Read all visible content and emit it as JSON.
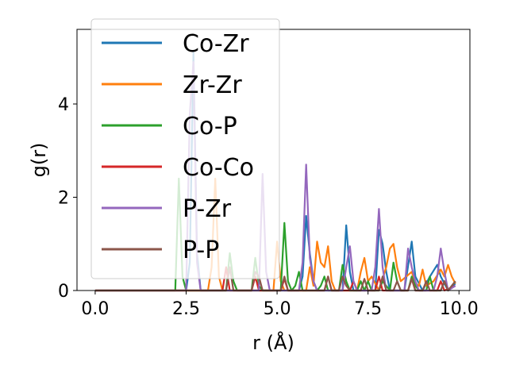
{
  "chart_data": {
    "type": "line",
    "title": "",
    "xlabel": "r (Å)",
    "ylabel": "g(r)",
    "xlim": [
      -0.5,
      10.3
    ],
    "ylim": [
      0,
      5.6
    ],
    "xticks": [
      "0.0",
      "2.5",
      "5.0",
      "7.5",
      "10.0"
    ],
    "yticks": [
      "0",
      "2",
      "4"
    ],
    "grid": false,
    "legend_position": "upper-left",
    "series": [
      {
        "name": "Co-Zr",
        "color": "#1f77b4",
        "points": [
          [
            0,
            0
          ],
          [
            2.5,
            0
          ],
          [
            2.6,
            0.6
          ],
          [
            2.7,
            5.1
          ],
          [
            2.8,
            0.8
          ],
          [
            2.9,
            0
          ],
          [
            5.6,
            0
          ],
          [
            5.7,
            0.3
          ],
          [
            5.8,
            1.6
          ],
          [
            5.9,
            0.8
          ],
          [
            6.0,
            0.2
          ],
          [
            6.1,
            0
          ],
          [
            6.8,
            0
          ],
          [
            6.9,
            1.4
          ],
          [
            7.0,
            0.4
          ],
          [
            7.1,
            0
          ],
          [
            7.7,
            0
          ],
          [
            7.8,
            1.3
          ],
          [
            7.9,
            1.0
          ],
          [
            8.0,
            0.4
          ],
          [
            8.1,
            0
          ],
          [
            8.5,
            0
          ],
          [
            8.7,
            1.05
          ],
          [
            8.8,
            0.3
          ],
          [
            9.0,
            0
          ],
          [
            9.2,
            0.3
          ],
          [
            9.4,
            0.55
          ],
          [
            9.5,
            0.3
          ],
          [
            9.7,
            0
          ],
          [
            9.9,
            0.15
          ]
        ]
      },
      {
        "name": "Zr-Zr",
        "color": "#ff7f0e",
        "points": [
          [
            0,
            0
          ],
          [
            3.1,
            0
          ],
          [
            3.2,
            0.5
          ],
          [
            3.3,
            2.4
          ],
          [
            3.4,
            0.3
          ],
          [
            3.5,
            0
          ],
          [
            4.9,
            0
          ],
          [
            5.0,
            1.05
          ],
          [
            5.1,
            0.2
          ],
          [
            5.2,
            0
          ],
          [
            5.8,
            0
          ],
          [
            5.9,
            0.5
          ],
          [
            6.0,
            0.1
          ],
          [
            6.1,
            1.05
          ],
          [
            6.2,
            0.6
          ],
          [
            6.3,
            0.5
          ],
          [
            6.4,
            0.95
          ],
          [
            6.5,
            0.2
          ],
          [
            6.6,
            0
          ],
          [
            7.2,
            0
          ],
          [
            7.3,
            0.4
          ],
          [
            7.4,
            0.7
          ],
          [
            7.5,
            0.2
          ],
          [
            7.6,
            0.3
          ],
          [
            7.8,
            0
          ],
          [
            8.0,
            0.5
          ],
          [
            8.1,
            0.9
          ],
          [
            8.2,
            1.0
          ],
          [
            8.3,
            0.5
          ],
          [
            8.4,
            0.2
          ],
          [
            8.7,
            0.4
          ],
          [
            8.8,
            0.15
          ],
          [
            8.9,
            0.1
          ],
          [
            9.0,
            0.45
          ],
          [
            9.1,
            0.1
          ],
          [
            9.3,
            0.2
          ],
          [
            9.5,
            0.45
          ],
          [
            9.6,
            0.3
          ],
          [
            9.7,
            0.55
          ],
          [
            9.8,
            0.3
          ],
          [
            9.9,
            0.15
          ]
        ]
      },
      {
        "name": "Co-P",
        "color": "#2ca02c",
        "points": [
          [
            0,
            0
          ],
          [
            2.2,
            0
          ],
          [
            2.3,
            2.4
          ],
          [
            2.4,
            0.3
          ],
          [
            2.5,
            0
          ],
          [
            3.6,
            0
          ],
          [
            3.7,
            0.8
          ],
          [
            3.8,
            0.2
          ],
          [
            3.9,
            0
          ],
          [
            4.3,
            0
          ],
          [
            4.4,
            0.7
          ],
          [
            4.5,
            0.1
          ],
          [
            4.6,
            0
          ],
          [
            5.1,
            0
          ],
          [
            5.2,
            1.45
          ],
          [
            5.3,
            0.2
          ],
          [
            5.4,
            0
          ],
          [
            5.5,
            0.1
          ],
          [
            5.6,
            0.4
          ],
          [
            5.7,
            0
          ],
          [
            6.1,
            0
          ],
          [
            6.2,
            0.1
          ],
          [
            6.3,
            0.3
          ],
          [
            6.4,
            0
          ],
          [
            6.7,
            0
          ],
          [
            6.8,
            0.55
          ],
          [
            6.9,
            0.2
          ],
          [
            7.0,
            0
          ],
          [
            7.2,
            0
          ],
          [
            7.3,
            0.2
          ],
          [
            7.4,
            0
          ],
          [
            7.5,
            0.2
          ],
          [
            7.6,
            0
          ],
          [
            7.8,
            0
          ],
          [
            7.9,
            0.2
          ],
          [
            8.0,
            0.1
          ],
          [
            8.1,
            0
          ],
          [
            8.2,
            0.6
          ],
          [
            8.3,
            0.2
          ],
          [
            8.4,
            0
          ],
          [
            8.6,
            0
          ],
          [
            8.7,
            0.3
          ],
          [
            8.8,
            0.1
          ],
          [
            8.9,
            0
          ],
          [
            9.1,
            0
          ],
          [
            9.2,
            0.3
          ],
          [
            9.3,
            0
          ],
          [
            9.5,
            0
          ],
          [
            9.6,
            0.2
          ],
          [
            9.7,
            0
          ],
          [
            9.9,
            0.2
          ]
        ]
      },
      {
        "name": "Co-Co",
        "color": "#d62728",
        "points": [
          [
            0,
            0
          ],
          [
            3.5,
            0
          ],
          [
            3.6,
            0.5
          ],
          [
            3.7,
            0
          ],
          [
            4.3,
            0
          ],
          [
            4.4,
            0.3
          ],
          [
            4.5,
            0
          ],
          [
            5.1,
            0
          ],
          [
            5.2,
            0.25
          ],
          [
            5.3,
            0
          ],
          [
            6.3,
            0
          ],
          [
            6.4,
            0.3
          ],
          [
            6.5,
            0
          ],
          [
            7.0,
            0
          ],
          [
            7.1,
            0.2
          ],
          [
            7.2,
            0
          ],
          [
            7.7,
            0
          ],
          [
            7.8,
            0.3
          ],
          [
            7.9,
            0
          ],
          [
            8.6,
            0
          ],
          [
            8.7,
            0.25
          ],
          [
            8.8,
            0
          ],
          [
            9.4,
            0
          ],
          [
            9.5,
            0.2
          ],
          [
            9.6,
            0
          ],
          [
            9.9,
            0.1
          ]
        ]
      },
      {
        "name": "P-Zr",
        "color": "#9467bd",
        "points": [
          [
            0,
            0
          ],
          [
            2.5,
            0
          ],
          [
            2.6,
            3.8
          ],
          [
            2.7,
            4.9
          ],
          [
            2.8,
            0.6
          ],
          [
            2.9,
            0
          ],
          [
            4.5,
            0
          ],
          [
            4.6,
            2.5
          ],
          [
            4.7,
            0.4
          ],
          [
            4.8,
            0
          ],
          [
            5.6,
            0
          ],
          [
            5.7,
            0.6
          ],
          [
            5.8,
            2.7
          ],
          [
            5.9,
            0.7
          ],
          [
            6.0,
            0.2
          ],
          [
            6.1,
            0
          ],
          [
            6.8,
            0
          ],
          [
            6.9,
            0.5
          ],
          [
            7.0,
            0.95
          ],
          [
            7.1,
            0.2
          ],
          [
            7.2,
            0
          ],
          [
            7.6,
            0
          ],
          [
            7.7,
            0.5
          ],
          [
            7.8,
            1.75
          ],
          [
            7.9,
            0.5
          ],
          [
            8.0,
            0
          ],
          [
            8.5,
            0
          ],
          [
            8.6,
            0.9
          ],
          [
            8.7,
            0.5
          ],
          [
            8.8,
            0.2
          ],
          [
            8.9,
            0
          ],
          [
            9.3,
            0
          ],
          [
            9.4,
            0.3
          ],
          [
            9.5,
            0.9
          ],
          [
            9.6,
            0.4
          ],
          [
            9.7,
            0
          ],
          [
            9.9,
            0.1
          ]
        ]
      },
      {
        "name": "P-P",
        "color": "#8c564b",
        "points": [
          [
            0,
            0
          ],
          [
            3.6,
            0
          ],
          [
            3.7,
            0.5
          ],
          [
            3.8,
            0
          ],
          [
            4.3,
            0
          ],
          [
            4.4,
            0.4
          ],
          [
            4.5,
            0.3
          ],
          [
            4.6,
            0
          ],
          [
            5.1,
            0
          ],
          [
            5.2,
            0.3
          ],
          [
            5.3,
            0
          ],
          [
            6.3,
            0
          ],
          [
            6.4,
            0.3
          ],
          [
            6.5,
            0
          ],
          [
            6.7,
            0
          ],
          [
            6.8,
            0.3
          ],
          [
            6.9,
            0.1
          ],
          [
            7.0,
            0
          ],
          [
            7.3,
            0
          ],
          [
            7.4,
            0.25
          ],
          [
            7.5,
            0
          ],
          [
            7.8,
            0
          ],
          [
            7.9,
            0.3
          ],
          [
            8.0,
            0
          ],
          [
            8.2,
            0
          ],
          [
            8.3,
            0.2
          ],
          [
            8.4,
            0
          ],
          [
            8.6,
            0
          ],
          [
            8.7,
            0.25
          ],
          [
            8.8,
            0
          ],
          [
            9.0,
            0
          ],
          [
            9.1,
            0.2
          ],
          [
            9.2,
            0
          ],
          [
            9.5,
            0
          ],
          [
            9.6,
            0.2
          ],
          [
            9.7,
            0
          ],
          [
            9.9,
            0.2
          ]
        ]
      }
    ]
  }
}
